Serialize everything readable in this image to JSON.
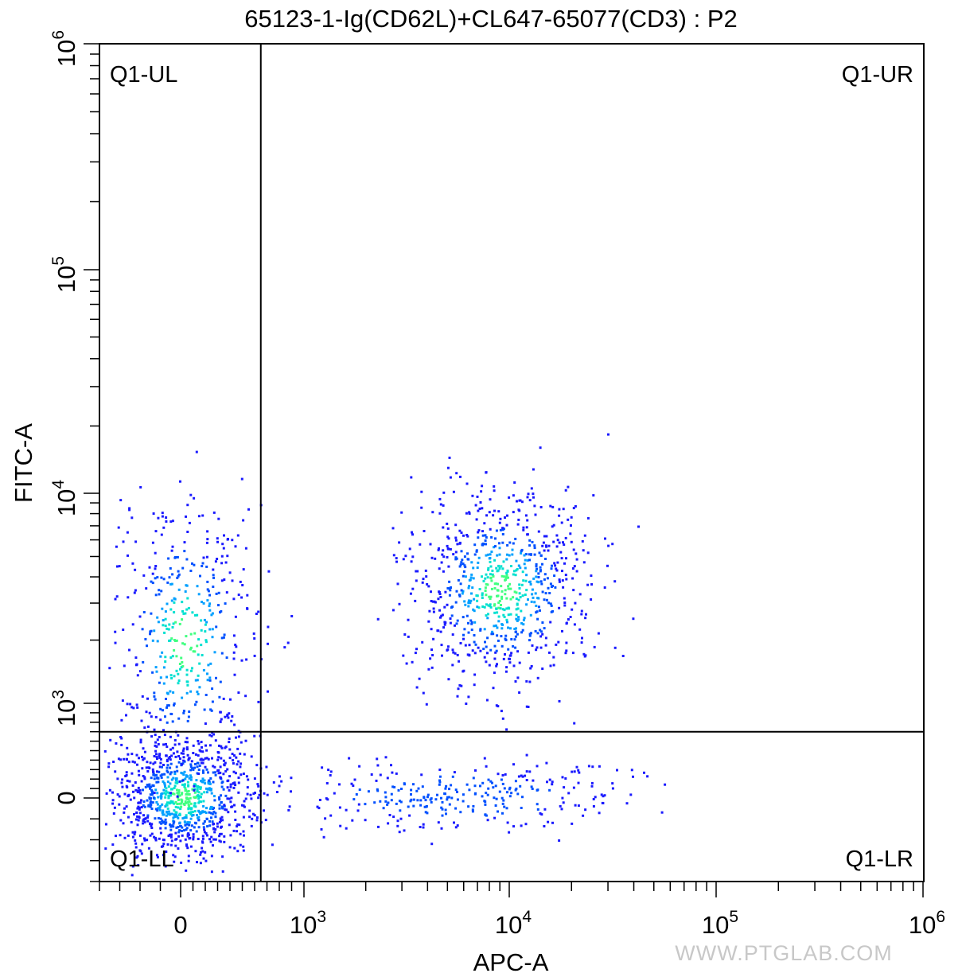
{
  "chart_data": {
    "type": "scatter",
    "title": "65123-1-Ig(CD62L)+CL647-65077(CD3) : P2",
    "xlabel": "APC-A",
    "ylabel": "FITC-A",
    "x_scale": "biexponential",
    "y_scale": "biexponential",
    "xlim": [
      -400,
      1000000
    ],
    "ylim": [
      -400,
      1000000
    ],
    "x_ticks": [
      {
        "value": 0,
        "base": "0",
        "exp": ""
      },
      {
        "value": 1000,
        "base": "10",
        "exp": "3"
      },
      {
        "value": 10000,
        "base": "10",
        "exp": "4"
      },
      {
        "value": 100000,
        "base": "10",
        "exp": "5"
      },
      {
        "value": 1000000,
        "base": "10",
        "exp": "6"
      }
    ],
    "y_ticks": [
      {
        "value": 0,
        "base": "0",
        "exp": ""
      },
      {
        "value": 1000,
        "base": "10",
        "exp": "3"
      },
      {
        "value": 10000,
        "base": "10",
        "exp": "4"
      },
      {
        "value": 100000,
        "base": "10",
        "exp": "5"
      },
      {
        "value": 1000000,
        "base": "10",
        "exp": "6"
      }
    ],
    "gate_x": 650,
    "gate_y": 700,
    "quadrants": [
      "Q1-UL",
      "Q1-UR",
      "Q1-LL",
      "Q1-LR"
    ],
    "density_colors": [
      "#1a1aff",
      "#0050ff",
      "#00a0ff",
      "#00e0d0",
      "#40ff80"
    ],
    "populations": [
      {
        "name": "lower-left",
        "x_center": 20,
        "y_center": 20,
        "count": 900
      },
      {
        "name": "upper-left",
        "x_center": 20,
        "y_center": 2000,
        "count": 450
      },
      {
        "name": "upper-right",
        "x_center": 9000,
        "y_center": 3500,
        "count": 800
      },
      {
        "name": "lower-right",
        "x_center": 5500,
        "y_center": 30,
        "count": 300
      }
    ],
    "grid": false,
    "legend": "none"
  },
  "watermark": "WWW.PTGLAB.COM"
}
